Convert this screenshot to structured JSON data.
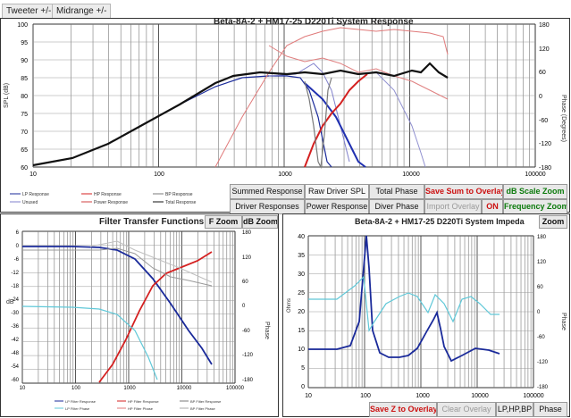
{
  "tabs": [
    {
      "label": "Tweeter +/-"
    },
    {
      "label": "Midrange  +/-"
    }
  ],
  "main": {
    "title": "Beta-8A-2 + HM17-25 D220Ti      System Response",
    "y_left_label": "SPL (dB)",
    "y_right_label": "Phase (Degrees)",
    "y_left_ticks": [
      "100",
      "95",
      "90",
      "85",
      "80",
      "75",
      "70",
      "65",
      "60"
    ],
    "y_right_ticks": [
      "180",
      "120",
      "60",
      "0",
      "-60",
      "-120",
      "-180"
    ],
    "x_ticks": [
      "10",
      "100",
      "1000",
      "10000",
      "100000"
    ],
    "legend": [
      "LP Response",
      "HP Response",
      "BP Response",
      "Unused",
      "Power Response",
      "Total Response"
    ],
    "buttons": {
      "summed": "Summed Response",
      "raw": "Raw Driver SPL",
      "total_phase": "Total Phase",
      "save_sum": "Save Sum to Overlay",
      "db_scale": "dB Scale Zoom",
      "driver_resp": "Driver Responses",
      "power_resp": "Power Response",
      "driver_phase": "Diver Phase",
      "import_overlay": "Import Overlay",
      "on": "ON",
      "freq_zoom": "Frequency Zoom"
    }
  },
  "filter": {
    "title": "Filter Transfer Functions",
    "f_zoom": "F Zoom",
    "db_zoom": "dB Zoom",
    "y_left_label": "dB",
    "y_right_label": "Phase",
    "y_left_ticks": [
      "6",
      "0",
      "-6",
      "-12",
      "-18",
      "-24",
      "-30",
      "-36",
      "-42",
      "-48",
      "-54",
      "-60"
    ],
    "y_right_ticks": [
      "180",
      "120",
      "60",
      "0",
      "-60",
      "-120",
      "-180"
    ],
    "x_ticks": [
      "10",
      "100",
      "1000",
      "10000",
      "100000"
    ],
    "legend": [
      "LP Filter Response",
      "HP Filter Response",
      "BP Filter Response",
      "LP Filter Phase",
      "HP Filter Phase",
      "BP Filter Phase"
    ]
  },
  "impedance": {
    "title": "Beta-8A-2 + HM17-25 D220Ti      System Impeda",
    "zoom": "Zoom",
    "y_left_label": "Ohms",
    "y_right_label": "Phase",
    "y_left_ticks": [
      "40",
      "35",
      "30",
      "25",
      "20",
      "15",
      "10",
      "5",
      "0"
    ],
    "y_right_ticks": [
      "180",
      "120",
      "60",
      "0",
      "-60",
      "-120",
      "-180"
    ],
    "x_ticks": [
      "10",
      "100",
      "1000",
      "10000",
      "100000"
    ],
    "buttons": {
      "save_z": "Save Z to Overlay",
      "clear": "Clear Overlay",
      "lphpbp": "LP,HP,BP",
      "phase": "Phase"
    }
  },
  "colors": {
    "lp": "#1a2a9a",
    "hp": "#d42020",
    "bp": "#7a7a7a",
    "total": "#111111",
    "lp_light": "#8080cc",
    "hp_light": "#e07a7a",
    "phase_cyan": "#60c8d8",
    "power": "#d04040"
  }
}
